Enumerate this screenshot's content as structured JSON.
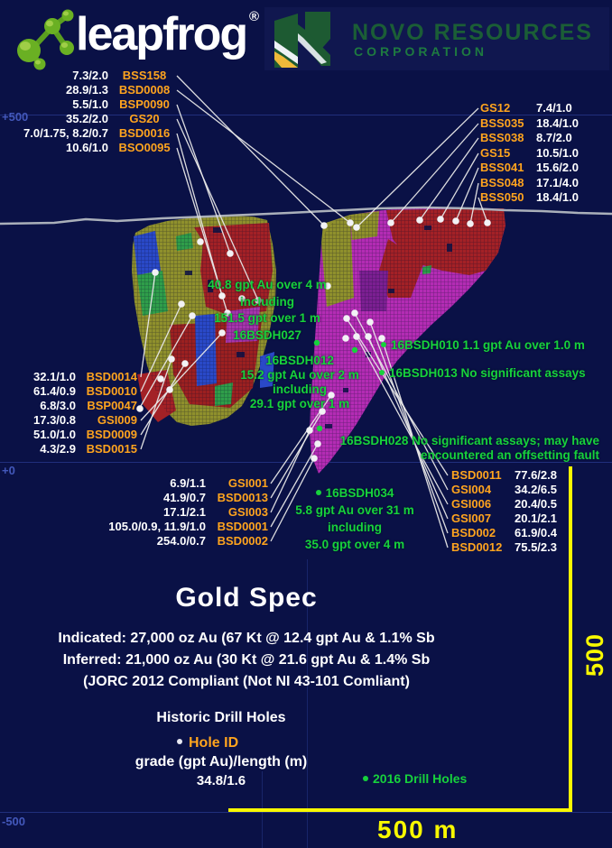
{
  "header": {
    "leapfrog_wordmark": "leapfrog",
    "registered_mark": "®",
    "novo_name": "NOVO RESOURCES",
    "novo_sub": "CORPORATION"
  },
  "elevation": {
    "plus500": "+500",
    "zero": "+0",
    "minus500": "-500"
  },
  "holes": {
    "top_left": [
      {
        "value": "7.3/2.0",
        "id": "BSS158"
      },
      {
        "value": "28.9/1.3",
        "id": "BSD0008"
      },
      {
        "value": "5.5/1.0",
        "id": "BSP0090"
      },
      {
        "value": "35.2/2.0",
        "id": "GS20"
      },
      {
        "value": "7.0/1.75, 8.2/0.7",
        "id": "BSD0016"
      },
      {
        "value": "10.6/1.0",
        "id": "BSO0095"
      }
    ],
    "top_right": [
      {
        "id": "GS12",
        "value": "7.4/1.0"
      },
      {
        "id": "BSS035",
        "value": "18.4/1.0"
      },
      {
        "id": "BSS038",
        "value": "8.7/2.0"
      },
      {
        "id": "GS15",
        "value": "10.5/1.0"
      },
      {
        "id": "BSS041",
        "value": "15.6/2.0"
      },
      {
        "id": "BSS048",
        "value": "17.1/4.0"
      },
      {
        "id": "BSS050",
        "value": "18.4/1.0"
      }
    ],
    "mid_left": [
      {
        "value": "32.1/1.0",
        "id": "BSD0014"
      },
      {
        "value": "61.4/0.9",
        "id": "BSD0010"
      },
      {
        "value": "6.8/3.0",
        "id": "BSP0047"
      },
      {
        "value": "17.3/0.8",
        "id": "GSI009"
      },
      {
        "value": "51.0/1.0",
        "id": "BSD0009"
      },
      {
        "value": "4.3/2.9",
        "id": "BSD0015"
      }
    ],
    "bottom_left": [
      {
        "value": "6.9/1.1",
        "id": "GSI001"
      },
      {
        "value": "41.9/0.7",
        "id": "BSD0013"
      },
      {
        "value": "17.1/2.1",
        "id": "GSI003"
      },
      {
        "value": "105.0/0.9, 11.9/1.0",
        "id": "BSD0001"
      },
      {
        "value": "254.0/0.7",
        "id": "BSD0002"
      }
    ],
    "bottom_right": [
      {
        "id": "BSD0011",
        "value": "77.6/2.8"
      },
      {
        "id": "GSI004",
        "value": "34.2/6.5"
      },
      {
        "id": "GSI006",
        "value": "20.4/0.5"
      },
      {
        "id": "GSI007",
        "value": "20.1/2.1"
      },
      {
        "id": "BSD002",
        "value": "61.9/0.4"
      },
      {
        "id": "BSD0012",
        "value": "75.5/2.3"
      }
    ]
  },
  "annotations_2016": {
    "hole27": {
      "l1": "40.8 gpt Au over 4 m",
      "l2": "including",
      "l3": "151.5 gpt over 1 m",
      "l4": "16BSDH027"
    },
    "hole12": {
      "l1": "16BSDH012",
      "l2": "15.2 gpt Au over 2 m",
      "l3": "including",
      "l4": "29.1 gpt over 1 m"
    },
    "hole10": "16BSDH010  1.1 gpt Au over 1.0 m",
    "hole13": "16BSDH013  No significant assays",
    "hole28": {
      "l1": "16BSDH028  No significant assays; may have",
      "l2": "encountered an offsetting fault"
    },
    "hole34": {
      "l1": "16BSDH034",
      "l2": "5.8 gpt Au over 31 m",
      "l3": "including",
      "l4": "35.0 gpt over 4 m"
    }
  },
  "summary": {
    "title": "Gold Spec",
    "indicated": "Indicated: 27,000 oz Au (67 Kt @ 12.4 gpt Au & 1.1% Sb",
    "inferred": "Inferred: 21,000 oz Au (30 Kt @ 21.6 gpt Au & 1.4% Sb",
    "compliance": "(JORC 2012 Compliant (Not NI 43-101 Comliant)"
  },
  "legend": {
    "historic_title": "Historic Drill Holes",
    "hole_id": "Hole ID",
    "grade_format": "grade (gpt Au)/length (m)",
    "grade_example": "34.8/1.6",
    "drill_2016": "2016 Drill Holes"
  },
  "scale": {
    "vertical_label": "500 m",
    "horizontal_label": "500 m"
  },
  "colors": {
    "background": "#0a1146",
    "hole_id_orange": "#ffa41e",
    "annotation_green": "#17d23c",
    "scale_yellow": "#f8f800",
    "grid_blue": "#4358bb",
    "novo_green": "#1b5e36",
    "body_olive": "#8f902c",
    "body_magenta": "#b42cb4",
    "body_red": "#a32126"
  }
}
